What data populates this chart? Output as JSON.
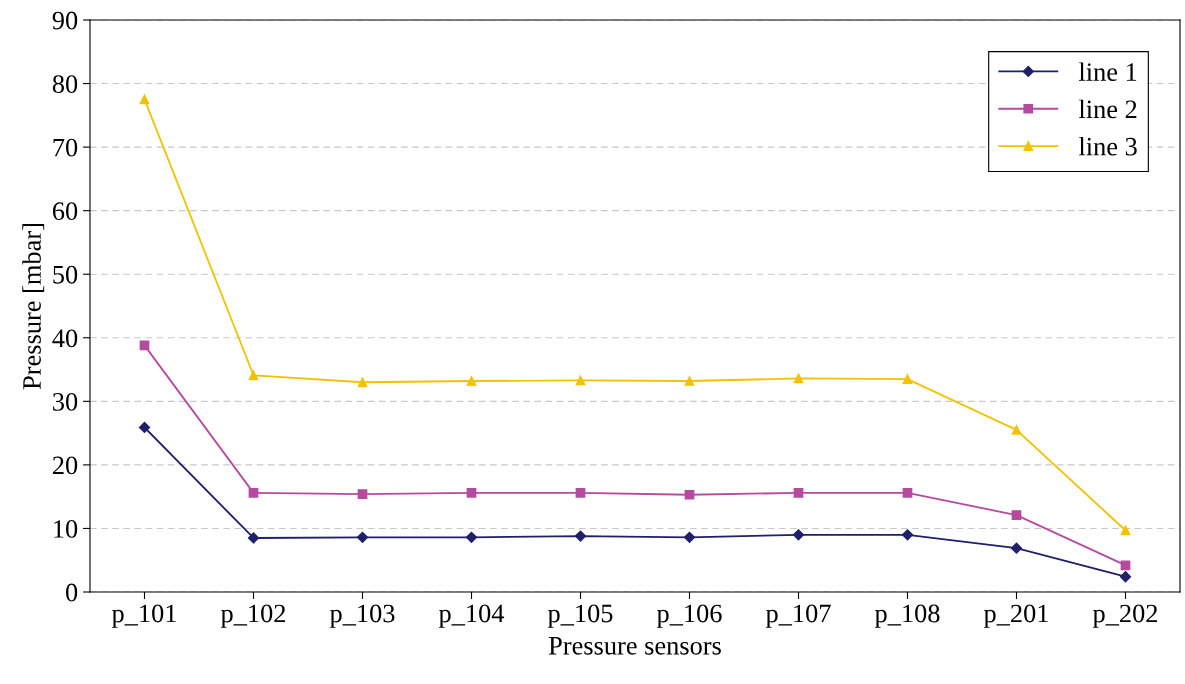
{
  "chart_data": {
    "type": "line",
    "xlabel": "Pressure sensors",
    "ylabel": "Pressure [mbar]",
    "categories": [
      "p_101",
      "p_102",
      "p_103",
      "p_104",
      "p_105",
      "p_106",
      "p_107",
      "p_108",
      "p_201",
      "p_202"
    ],
    "series": [
      {
        "name": "line 1",
        "color": "#1f1f6b",
        "marker": "diamond",
        "values": [
          25.9,
          8.5,
          8.6,
          8.6,
          8.8,
          8.6,
          9.0,
          9.0,
          6.9,
          2.4
        ]
      },
      {
        "name": "line 2",
        "color": "#b54b9e",
        "marker": "square",
        "values": [
          38.8,
          15.6,
          15.4,
          15.6,
          15.6,
          15.3,
          15.6,
          15.6,
          12.1,
          4.2
        ]
      },
      {
        "name": "line 3",
        "color": "#f2c200",
        "marker": "triangle",
        "values": [
          77.5,
          34.1,
          33.0,
          33.2,
          33.3,
          33.2,
          33.6,
          33.5,
          25.5,
          9.7
        ]
      }
    ],
    "ylim": [
      0,
      90
    ],
    "yticks": [
      0,
      10,
      20,
      30,
      40,
      50,
      60,
      70,
      80,
      90
    ],
    "grid": "y",
    "legend": "top right",
    "line_style": "solid"
  }
}
